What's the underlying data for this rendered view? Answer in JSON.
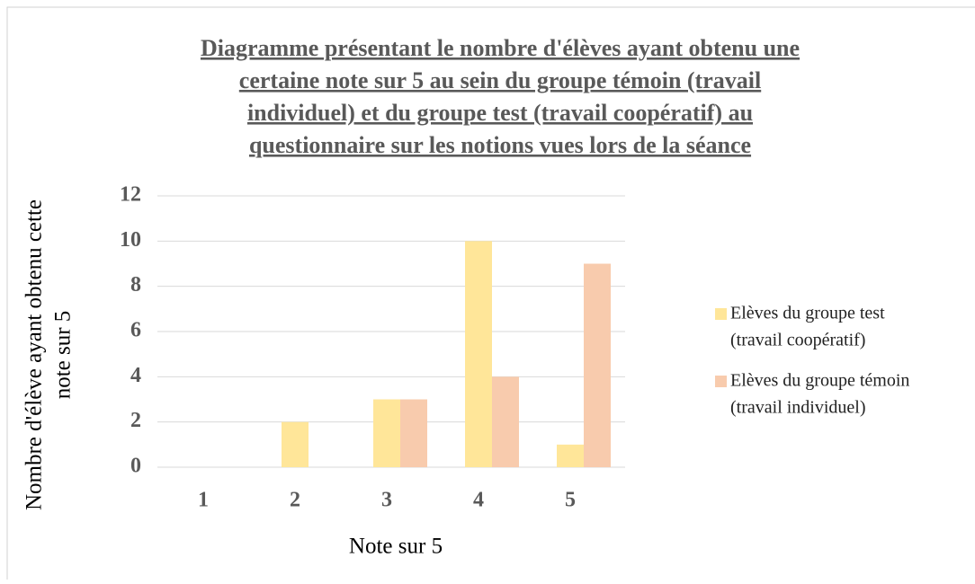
{
  "chart_data": {
    "type": "bar",
    "title": [
      "Diagramme présentant le nombre d'élèves ayant obtenu une",
      "certaine note sur 5 au sein du groupe témoin (travail",
      "individuel) et du groupe test (travail coopératif) au",
      "questionnaire sur les notions vues lors de la séance"
    ],
    "xlabel": "Note sur 5",
    "ylabel": [
      "Nombre d'élève ayant obtenu cette",
      "note sur 5"
    ],
    "categories": [
      "1",
      "2",
      "3",
      "4",
      "5"
    ],
    "series": [
      {
        "name": [
          "Elèves du groupe test",
          "(travail coopératif)"
        ],
        "color": "#FFE699",
        "values": [
          0,
          2,
          3,
          10,
          1
        ]
      },
      {
        "name": [
          "Elèves du groupe témoin",
          "(travail individuel)"
        ],
        "color": "#F8CBAD",
        "values": [
          0,
          0,
          3,
          4,
          9
        ]
      }
    ],
    "ylim": [
      0,
      12
    ],
    "yticks": [
      0,
      2,
      4,
      6,
      8,
      10,
      12
    ],
    "grid": true,
    "legend": "right"
  }
}
